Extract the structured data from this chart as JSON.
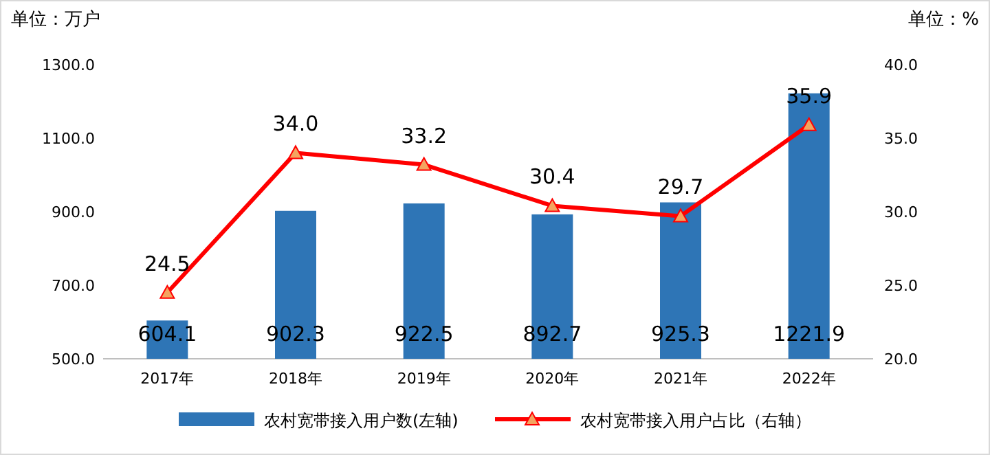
{
  "chart_data": {
    "type": "bar",
    "ylabel": "单位：万户",
    "y2label": "单位：%",
    "categories": [
      "2017年",
      "2018年",
      "2019年",
      "2020年",
      "2021年",
      "2022年"
    ],
    "series": [
      {
        "name": "农村宽带接入用户数(左轴)",
        "color": "#2e75b6",
        "values": [
          604.1,
          902.3,
          922.5,
          892.7,
          925.3,
          1221.9
        ]
      },
      {
        "name": "农村宽带接入用户占比（右轴）",
        "type": "line",
        "axis": "y2",
        "color": "#ff0000",
        "marker": "triangle",
        "values": [
          24.5,
          34.0,
          33.2,
          30.4,
          29.7,
          35.9
        ],
        "value_labels": [
          "24.5",
          "34.0",
          "33.2",
          "30.4",
          "29.7",
          "35.9"
        ]
      }
    ],
    "ylim": [
      500,
      1300
    ],
    "yticks": [
      {
        "value": 500,
        "label": "500.0"
      },
      {
        "value": 700,
        "label": "700.0"
      },
      {
        "value": 900,
        "label": "900.0"
      },
      {
        "value": 1100,
        "label": "1100.0"
      },
      {
        "value": 1300,
        "label": "1300.0"
      }
    ],
    "y2lim": [
      20,
      40
    ],
    "y2ticks": [
      {
        "value": 20,
        "label": "20.0"
      },
      {
        "value": 25,
        "label": "25.0"
      },
      {
        "value": 30,
        "label": "30.0"
      },
      {
        "value": 35,
        "label": "35.0"
      },
      {
        "value": 40,
        "label": "40.0"
      }
    ],
    "data_labels": true,
    "legend": "bottom"
  }
}
